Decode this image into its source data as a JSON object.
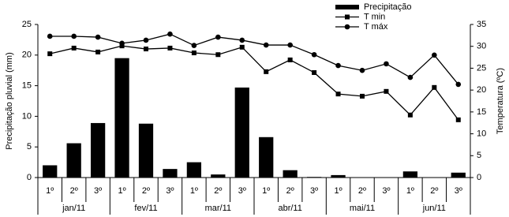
{
  "chart_data": {
    "type": "combo",
    "y_label": "Precipitação pluvial (mm)",
    "y2_label": "Temperatura (ºC)",
    "categories": [
      "1º",
      "2º",
      "3º",
      "1º",
      "2º",
      "3º",
      "1º",
      "2º",
      "3º",
      "1º",
      "2º",
      "3º",
      "1º",
      "2º",
      "3º",
      "1º",
      "2º",
      "3º"
    ],
    "groups": [
      "jan/11",
      "fev/11",
      "mar/11",
      "abr/11",
      "mai/11",
      "jun/11"
    ],
    "ylim": [
      0,
      25
    ],
    "yticks": [
      0,
      5,
      10,
      15,
      20,
      25
    ],
    "y2lim": [
      0,
      35
    ],
    "y2ticks": [
      0,
      5,
      10,
      15,
      20,
      25,
      30,
      35
    ],
    "legend": "top-right",
    "series": [
      {
        "name": "Precipitação",
        "type": "bar",
        "color": "#000000",
        "values": [
          2.0,
          5.6,
          8.9,
          19.5,
          8.8,
          1.4,
          2.5,
          0.5,
          14.7,
          6.6,
          1.2,
          0.1,
          0.4,
          0,
          0,
          1.0,
          0,
          0.8
        ]
      },
      {
        "name": "T min",
        "type": "line",
        "marker": "square",
        "color": "#000000",
        "axis": "y2",
        "values": [
          28.3,
          29.6,
          28.7,
          30.1,
          29.4,
          29.6,
          28.5,
          28.1,
          29.8,
          24.2,
          26.9,
          24.0,
          19.1,
          18.6,
          19.7,
          14.3,
          20.6,
          13.2
        ]
      },
      {
        "name": "T máx",
        "type": "line",
        "marker": "circle",
        "color": "#000000",
        "axis": "y2",
        "values": [
          32.3,
          32.3,
          32.1,
          30.7,
          31.4,
          32.8,
          30.2,
          32.1,
          31.4,
          30.3,
          30.3,
          28.1,
          25.6,
          24.5,
          26.0,
          22.9,
          28.0,
          21.3
        ]
      }
    ]
  }
}
